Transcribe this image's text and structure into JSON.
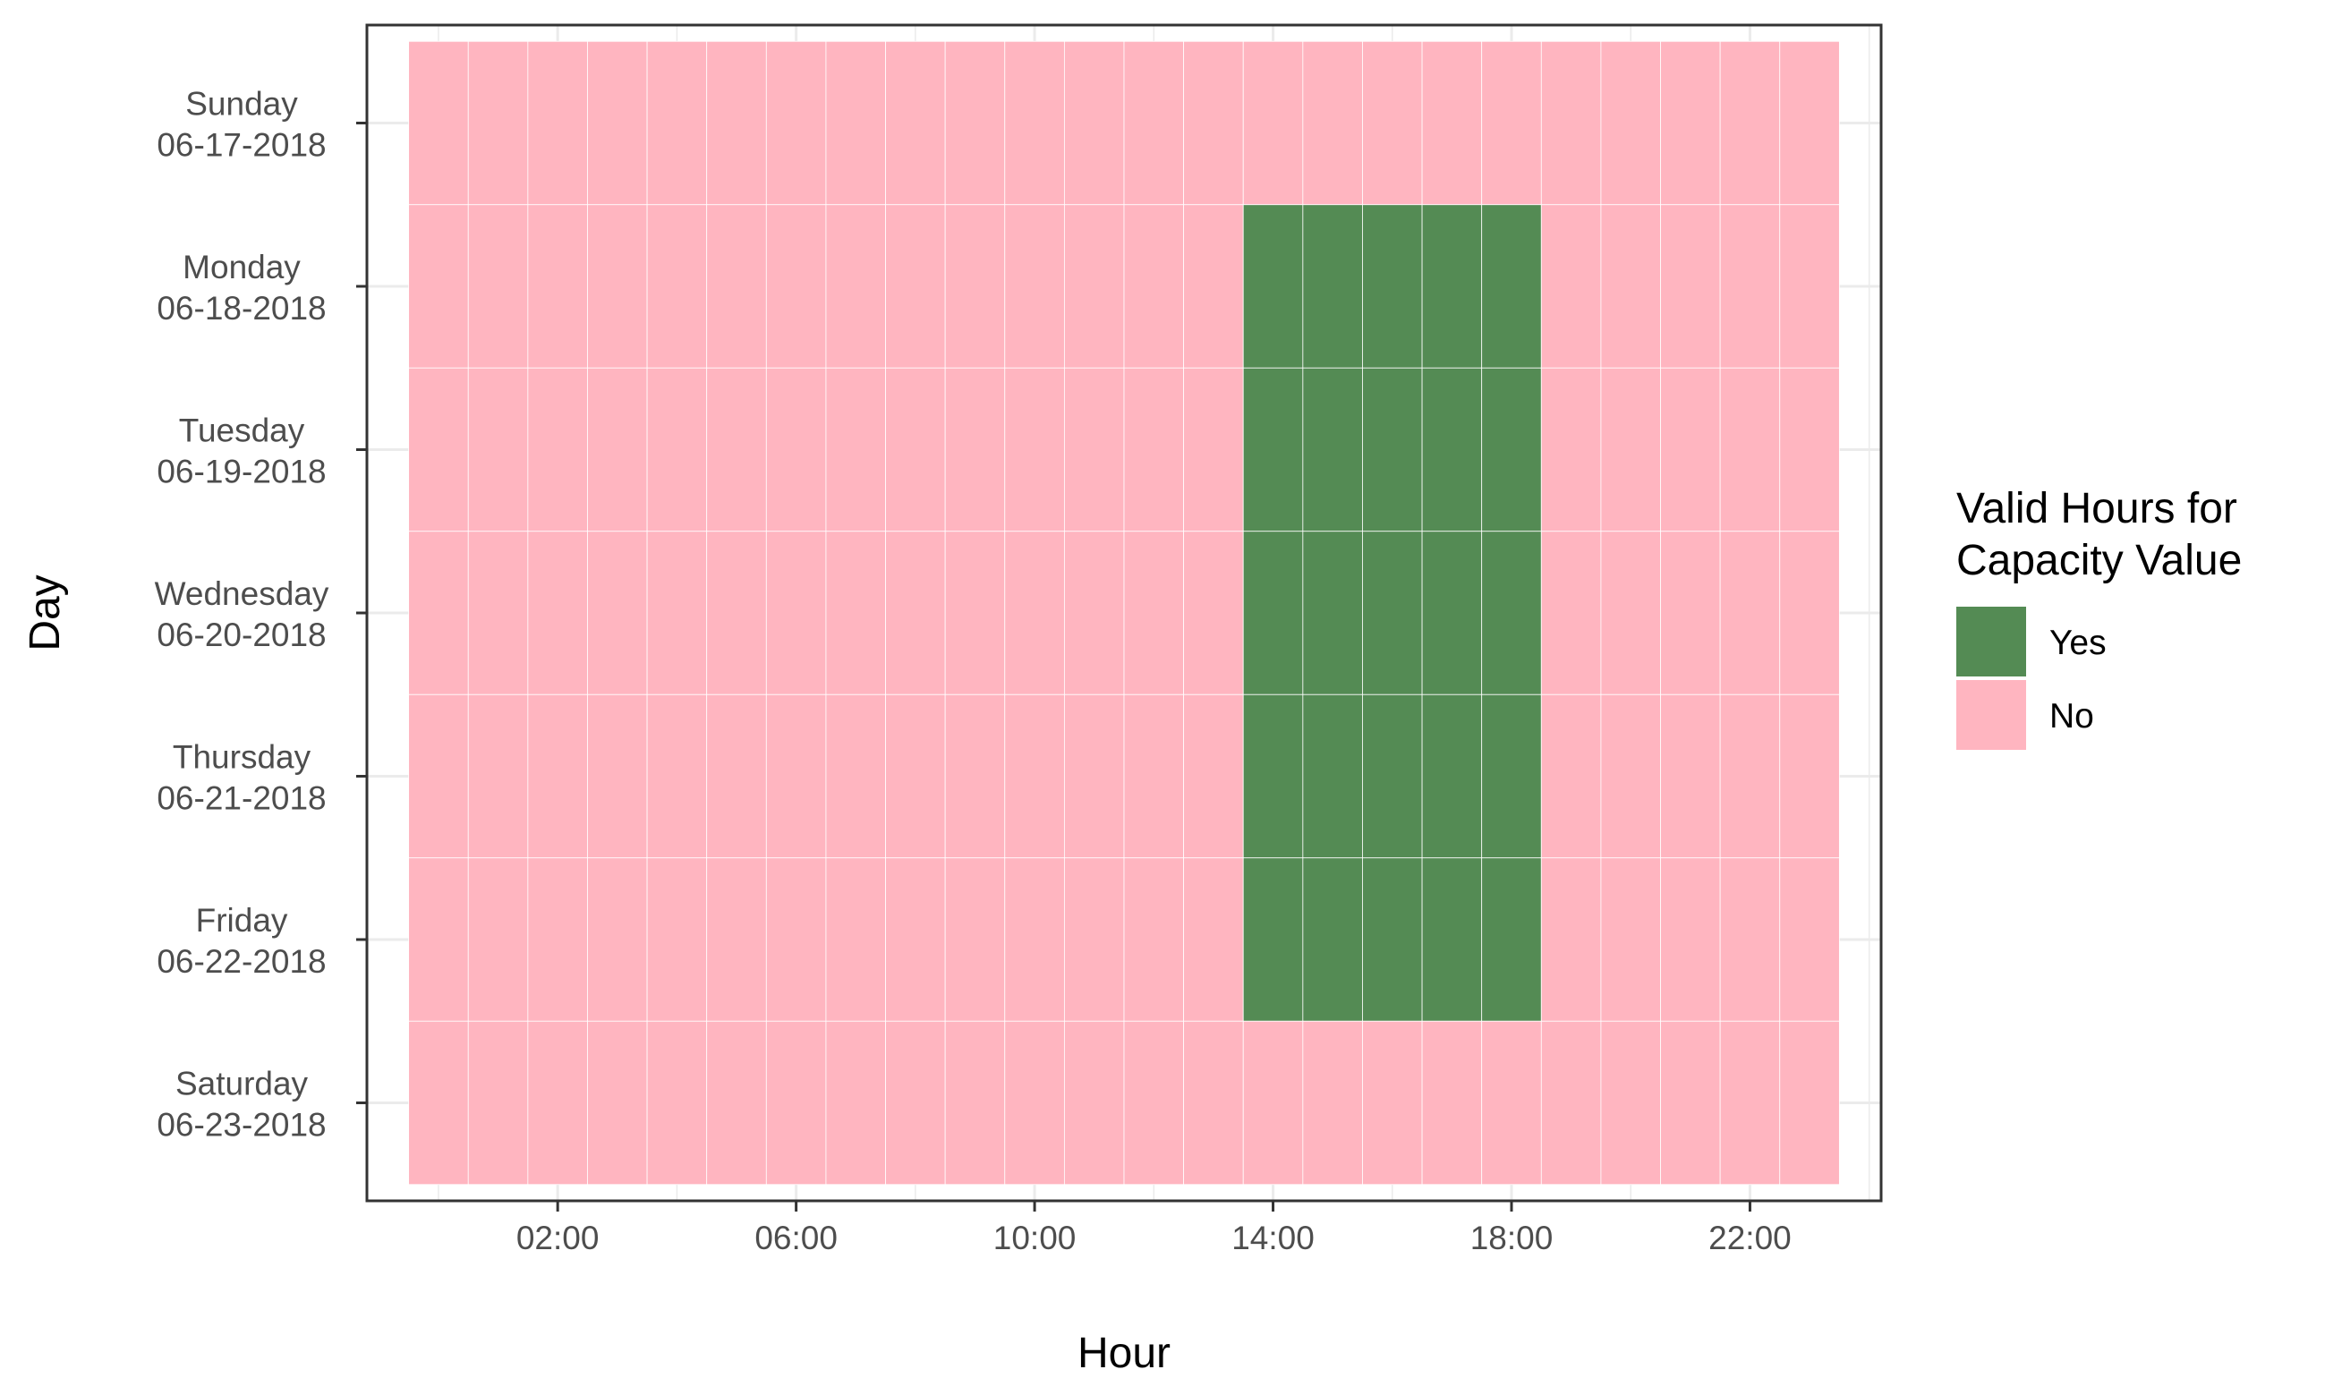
{
  "chart_data": {
    "type": "heatmap",
    "xlabel": "Hour",
    "ylabel": "Day",
    "x_unit": "hour of day",
    "x_values": [
      0,
      1,
      2,
      3,
      4,
      5,
      6,
      7,
      8,
      9,
      10,
      11,
      12,
      13,
      14,
      15,
      16,
      17,
      18,
      19,
      20,
      21,
      22,
      23
    ],
    "x_ticks": [
      {
        "value": 2,
        "label": "02:00"
      },
      {
        "value": 6,
        "label": "06:00"
      },
      {
        "value": 10,
        "label": "10:00"
      },
      {
        "value": 14,
        "label": "14:00"
      },
      {
        "value": 18,
        "label": "18:00"
      },
      {
        "value": 22,
        "label": "22:00"
      }
    ],
    "days": [
      {
        "weekday": "Sunday",
        "date": "06-17-2018"
      },
      {
        "weekday": "Monday",
        "date": "06-18-2018"
      },
      {
        "weekday": "Tuesday",
        "date": "06-19-2018"
      },
      {
        "weekday": "Wednesday",
        "date": "06-20-2018"
      },
      {
        "weekday": "Thursday",
        "date": "06-21-2018"
      },
      {
        "weekday": "Friday",
        "date": "06-22-2018"
      },
      {
        "weekday": "Saturday",
        "date": "06-23-2018"
      }
    ],
    "valid_cells": [
      {
        "date": "06-18-2018",
        "hours": [
          14,
          15,
          16,
          17,
          18
        ]
      },
      {
        "date": "06-19-2018",
        "hours": [
          14,
          15,
          16,
          17,
          18
        ]
      },
      {
        "date": "06-20-2018",
        "hours": [
          14,
          15,
          16,
          17,
          18
        ]
      },
      {
        "date": "06-21-2018",
        "hours": [
          14,
          15,
          16,
          17,
          18
        ]
      },
      {
        "date": "06-22-2018",
        "hours": [
          14,
          15,
          16,
          17,
          18
        ]
      }
    ],
    "legend": {
      "title_lines": [
        "Valid Hours for",
        "Capacity Value"
      ],
      "position": "right",
      "items": [
        {
          "label": "Yes",
          "color": "#548B54"
        },
        {
          "label": "No",
          "color": "#FFB5C0"
        }
      ]
    },
    "xlim": [
      -1.2,
      24.2
    ],
    "grid": true
  }
}
